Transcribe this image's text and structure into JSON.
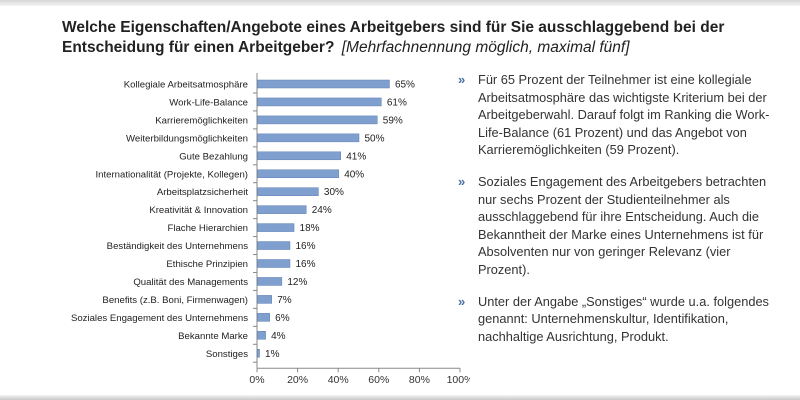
{
  "title": {
    "main": "Welche Eigenschaften/Angebote eines Arbeitgebers sind für Sie ausschlaggebend bei der Entscheidung für einen Arbeitgeber?",
    "sub": "[Mehrfachnennung möglich, maximal fünf]"
  },
  "chart_data": {
    "type": "bar",
    "orientation": "horizontal",
    "categories": [
      "Kollegiale Arbeitsatmosphäre",
      "Work-Life-Balance",
      "Karrieremöglichkeiten",
      "Weiterbildungsmöglichkeiten",
      "Gute Bezahlung",
      "Internationalität (Projekte, Kollegen)",
      "Arbeitsplatzsicherheit",
      "Kreativität & Innovation",
      "Flache Hierarchien",
      "Beständigkeit des Unternehmens",
      "Ethische Prinzipien",
      "Qualität des Managements",
      "Benefits (z.B. Boni, Firmenwagen)",
      "Soziales Engagement des Unternehmens",
      "Bekannte Marke",
      "Sonstiges"
    ],
    "values": [
      65,
      61,
      59,
      50,
      41,
      40,
      30,
      24,
      18,
      16,
      16,
      12,
      7,
      6,
      4,
      1
    ],
    "value_labels": [
      "65%",
      "61%",
      "59%",
      "50%",
      "41%",
      "40%",
      "30%",
      "24%",
      "18%",
      "16%",
      "16%",
      "12%",
      "7%",
      "6%",
      "4%",
      "1%"
    ],
    "xlim": [
      0,
      100
    ],
    "xticks": [
      "0%",
      "20%",
      "40%",
      "60%",
      "80%",
      "100%"
    ],
    "grid": false,
    "colors": {
      "bar": "#7f9fcf",
      "bar_edge": "#5f80b5",
      "axis": "#888888"
    }
  },
  "notes": [
    "Für 65 Prozent der Teilnehmer ist eine kollegiale Arbeitsatmosphäre das wichtigste Kriterium bei der Arbeitgeberwahl. Darauf folgt im Ranking die Work-Life-Balance (61 Prozent) und das Angebot von Karrieremöglichkeiten (59 Prozent).",
    "Soziales Engagement des Arbeitgebers betrachten nur sechs Prozent der Studienteilnehmer als ausschlaggebend für ihre Entscheidung. Auch die Bekanntheit der Marke eines Unternehmens ist für Absolventen nur von geringer Relevanz (vier Prozent).",
    "Unter der Angabe „Sonstiges“ wurde u.a. folgendes genannt: Unternehmenskultur, Identifikation, nachhaltige Ausrichtung, Produkt."
  ],
  "bullet_glyph": "»"
}
